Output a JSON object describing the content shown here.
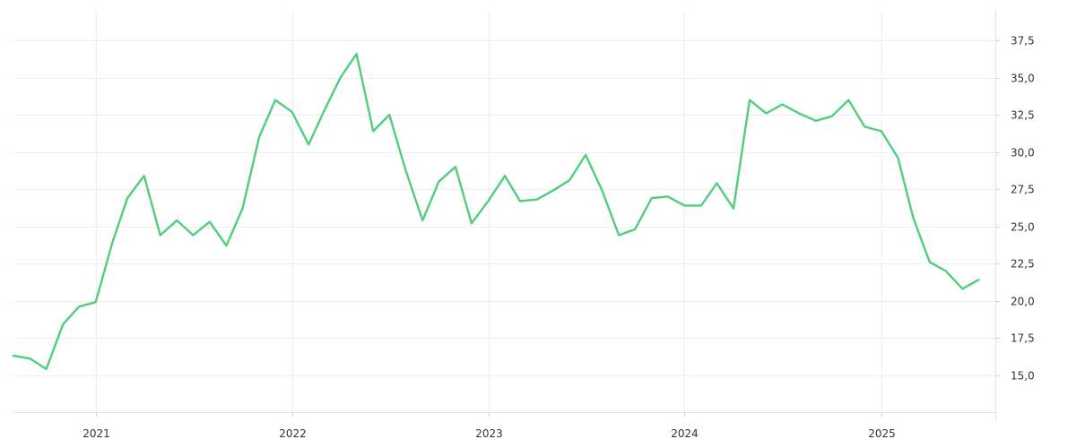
{
  "chart_data": {
    "type": "line",
    "title": "",
    "xlabel": "",
    "ylabel": "",
    "grid": true,
    "legend": "none",
    "x_range": [
      "2020-08-01",
      "2025-08-01"
    ],
    "ylim": [
      12.5,
      39.5
    ],
    "y_axis_position": "right",
    "y_ticks": [
      15.0,
      17.5,
      20.0,
      22.5,
      25.0,
      27.5,
      30.0,
      32.5,
      35.0,
      37.5
    ],
    "y_tick_labels": [
      "15,0",
      "17,5",
      "20,0",
      "22,5",
      "25,0",
      "27,5",
      "30,0",
      "32,5",
      "35,0",
      "37,5"
    ],
    "x_ticks": [
      "2021-01-01",
      "2022-01-01",
      "2023-01-01",
      "2024-01-01",
      "2025-01-01"
    ],
    "x_tick_labels": [
      "2021",
      "2022",
      "2023",
      "2024",
      "2025"
    ],
    "series": [
      {
        "color": "#4fcf7a",
        "points": [
          [
            "2020-08-01",
            16.3
          ],
          [
            "2020-09-01",
            16.1
          ],
          [
            "2020-10-01",
            15.4
          ],
          [
            "2020-11-01",
            18.4
          ],
          [
            "2020-12-01",
            19.6
          ],
          [
            "2021-01-01",
            19.9
          ],
          [
            "2021-02-01",
            23.9
          ],
          [
            "2021-03-01",
            26.9
          ],
          [
            "2021-04-01",
            28.4
          ],
          [
            "2021-05-01",
            24.4
          ],
          [
            "2021-06-01",
            25.4
          ],
          [
            "2021-07-01",
            24.4
          ],
          [
            "2021-08-01",
            25.3
          ],
          [
            "2021-09-01",
            23.7
          ],
          [
            "2021-10-01",
            26.2
          ],
          [
            "2021-11-01",
            31.0
          ],
          [
            "2021-12-01",
            33.5
          ],
          [
            "2022-01-01",
            32.7
          ],
          [
            "2022-02-01",
            30.5
          ],
          [
            "2022-03-01",
            32.7
          ],
          [
            "2022-04-01",
            35.0
          ],
          [
            "2022-05-01",
            36.6
          ],
          [
            "2022-06-01",
            31.4
          ],
          [
            "2022-07-01",
            32.5
          ],
          [
            "2022-08-01",
            28.7
          ],
          [
            "2022-09-01",
            25.4
          ],
          [
            "2022-10-01",
            28.0
          ],
          [
            "2022-11-01",
            29.0
          ],
          [
            "2022-12-01",
            25.2
          ],
          [
            "2023-01-01",
            26.7
          ],
          [
            "2023-02-01",
            28.4
          ],
          [
            "2023-03-01",
            26.7
          ],
          [
            "2023-04-01",
            26.8
          ],
          [
            "2023-05-01",
            27.4
          ],
          [
            "2023-06-01",
            28.1
          ],
          [
            "2023-07-01",
            29.8
          ],
          [
            "2023-08-01",
            27.4
          ],
          [
            "2023-09-01",
            24.4
          ],
          [
            "2023-10-01",
            24.8
          ],
          [
            "2023-11-01",
            26.9
          ],
          [
            "2023-12-01",
            27.0
          ],
          [
            "2024-01-01",
            26.4
          ],
          [
            "2024-02-01",
            26.4
          ],
          [
            "2024-03-01",
            27.9
          ],
          [
            "2024-04-01",
            26.2
          ],
          [
            "2024-05-01",
            33.5
          ],
          [
            "2024-06-01",
            32.6
          ],
          [
            "2024-07-01",
            33.2
          ],
          [
            "2024-08-01",
            32.6
          ],
          [
            "2024-09-01",
            32.1
          ],
          [
            "2024-10-01",
            32.4
          ],
          [
            "2024-11-01",
            33.5
          ],
          [
            "2024-12-01",
            31.7
          ],
          [
            "2025-01-01",
            31.4
          ],
          [
            "2025-02-01",
            29.6
          ],
          [
            "2025-03-01",
            25.6
          ],
          [
            "2025-04-01",
            22.6
          ],
          [
            "2025-05-01",
            22.0
          ],
          [
            "2025-06-01",
            20.8
          ],
          [
            "2025-07-01",
            21.4
          ]
        ]
      }
    ]
  }
}
